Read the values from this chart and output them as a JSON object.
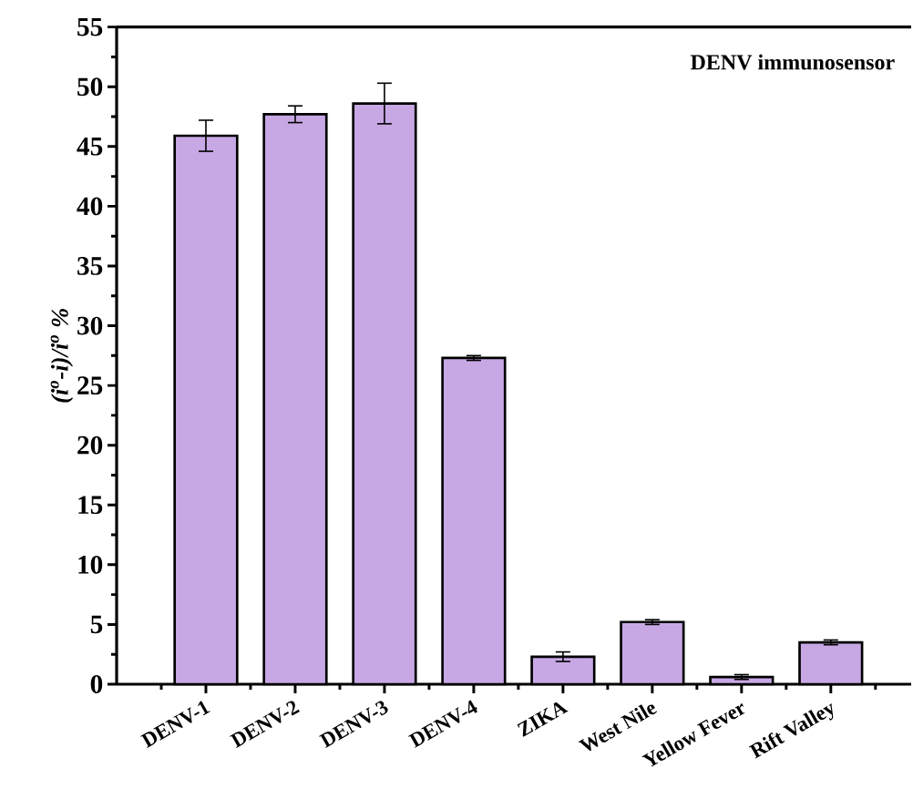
{
  "chart_data": {
    "type": "bar",
    "ylabel": "(i$^{o}$-i)/i$^{o}$ %",
    "categories": [
      "DENV-1",
      "DENV-2",
      "DENV-3",
      "DENV-4",
      "ZIKA",
      "West Nile",
      "Yellow Fever",
      "Rift Valley"
    ],
    "values": [
      45.9,
      47.7,
      48.6,
      27.3,
      2.3,
      5.2,
      0.6,
      3.5
    ],
    "errors": [
      1.3,
      0.7,
      1.7,
      0.2,
      0.4,
      0.2,
      0.2,
      0.2
    ],
    "color": "#c8a8e4",
    "ylim": [
      0,
      55
    ],
    "yticks": [
      0,
      5,
      10,
      15,
      20,
      25,
      30,
      35,
      40,
      45,
      50,
      55
    ],
    "annotations": [
      "DENV immunosensor"
    ],
    "grid": false
  }
}
